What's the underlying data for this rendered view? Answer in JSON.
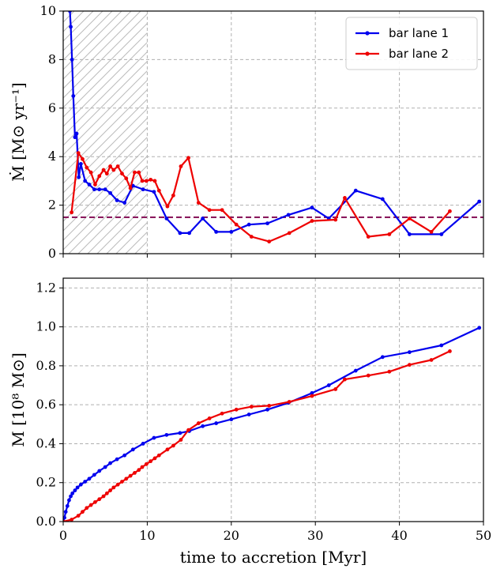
{
  "chart_data": [
    {
      "type": "line",
      "panel": "top",
      "xlabel": "",
      "ylabel": "Ṁ [M⊙ yr⁻¹]",
      "xlim": [
        0,
        50
      ],
      "ylim": [
        0,
        10
      ],
      "xticks": [
        0,
        10,
        20,
        30,
        40,
        50
      ],
      "yticks": [
        0,
        2,
        4,
        6,
        8,
        10
      ],
      "x_tick_labels_shown": false,
      "grid": true,
      "legend": "top-right",
      "hatched_region": [
        0,
        10
      ],
      "reference_line": {
        "y": 1.5,
        "color": "#8b1a5e",
        "style": "dashed"
      },
      "series": [
        {
          "name": "bar lane 1",
          "color": "#0000ee",
          "x": [
            0.8,
            0.9,
            1.05,
            1.2,
            1.4,
            1.6,
            1.85,
            2.1,
            2.6,
            3.1,
            3.7,
            4.3,
            5.0,
            5.6,
            6.4,
            7.3,
            8.3,
            9.5,
            10.8,
            12.3,
            13.9,
            15.0,
            16.6,
            18.2,
            20.0,
            22.1,
            24.3,
            26.8,
            29.6,
            31.6,
            34.8,
            38.0,
            41.2,
            45.0,
            49.5
          ],
          "y": [
            10.0,
            9.35,
            8.0,
            6.5,
            4.8,
            4.95,
            3.15,
            3.7,
            3.0,
            2.85,
            2.65,
            2.65,
            2.65,
            2.5,
            2.2,
            2.1,
            2.8,
            2.65,
            2.55,
            1.45,
            0.85,
            0.85,
            1.45,
            0.9,
            0.9,
            1.2,
            1.25,
            1.6,
            1.9,
            1.45,
            2.6,
            2.25,
            0.8,
            0.8,
            2.15
          ]
        },
        {
          "name": "bar lane 2",
          "color": "#ee0000",
          "x": [
            1.0,
            1.8,
            2.3,
            2.8,
            3.3,
            3.8,
            4.3,
            4.8,
            5.2,
            5.6,
            6.0,
            6.5,
            7.0,
            7.5,
            8.0,
            8.5,
            9.0,
            9.4,
            9.9,
            10.4,
            10.9,
            11.4,
            12.4,
            13.1,
            14.0,
            14.9,
            16.1,
            17.4,
            18.9,
            20.6,
            22.4,
            24.5,
            26.9,
            29.6,
            32.4,
            33.5,
            36.3,
            38.8,
            41.2,
            43.8,
            46.0
          ],
          "y": [
            1.7,
            4.15,
            3.9,
            3.55,
            3.35,
            2.85,
            3.2,
            3.45,
            3.3,
            3.6,
            3.45,
            3.6,
            3.3,
            3.1,
            2.7,
            3.35,
            3.35,
            3.0,
            3.0,
            3.05,
            3.0,
            2.6,
            1.95,
            2.4,
            3.6,
            3.95,
            2.1,
            1.8,
            1.8,
            1.2,
            0.7,
            0.5,
            0.85,
            1.35,
            1.4,
            2.3,
            0.7,
            0.8,
            1.45,
            0.9,
            1.75
          ]
        }
      ]
    },
    {
      "type": "line",
      "panel": "bottom",
      "xlabel": "time to accretion [Myr]",
      "ylabel": "M [10⁸ M⊙]",
      "xlim": [
        0,
        50
      ],
      "ylim": [
        0,
        1.25
      ],
      "xticks": [
        0,
        10,
        20,
        30,
        40,
        50
      ],
      "yticks": [
        0.0,
        0.2,
        0.4,
        0.6,
        0.8,
        1.0,
        1.2
      ],
      "x_tick_labels": [
        "0",
        "10",
        "20",
        "30",
        "40",
        "50"
      ],
      "y_tick_labels": [
        "0.0",
        "0.2",
        "0.4",
        "0.6",
        "0.8",
        "1.0",
        "1.2"
      ],
      "grid": true,
      "series": [
        {
          "name": "bar lane 1",
          "color": "#0000ee",
          "x": [
            0.0,
            0.15,
            0.3,
            0.5,
            0.7,
            0.9,
            1.1,
            1.4,
            1.7,
            2.1,
            2.6,
            3.1,
            3.7,
            4.3,
            5.0,
            5.6,
            6.4,
            7.3,
            8.3,
            9.5,
            10.8,
            12.3,
            13.9,
            15.0,
            16.6,
            18.2,
            20.0,
            22.1,
            24.3,
            26.8,
            29.6,
            31.6,
            34.8,
            38.0,
            41.2,
            45.0,
            49.5
          ],
          "y": [
            0.0,
            0.02,
            0.05,
            0.08,
            0.11,
            0.13,
            0.145,
            0.16,
            0.175,
            0.19,
            0.205,
            0.22,
            0.24,
            0.26,
            0.28,
            0.3,
            0.32,
            0.34,
            0.37,
            0.4,
            0.43,
            0.445,
            0.455,
            0.465,
            0.49,
            0.505,
            0.525,
            0.55,
            0.575,
            0.61,
            0.66,
            0.7,
            0.775,
            0.845,
            0.87,
            0.905,
            0.995
          ]
        },
        {
          "name": "bar lane 2",
          "color": "#ee0000",
          "x": [
            0.0,
            1.0,
            1.8,
            2.3,
            2.8,
            3.3,
            3.8,
            4.3,
            4.8,
            5.2,
            5.6,
            6.0,
            6.5,
            7.0,
            7.5,
            8.0,
            8.5,
            9.0,
            9.4,
            9.9,
            10.4,
            10.9,
            11.4,
            12.4,
            13.1,
            14.0,
            14.9,
            16.1,
            17.4,
            18.9,
            20.6,
            22.4,
            24.5,
            26.9,
            29.6,
            32.4,
            33.5,
            36.3,
            38.8,
            41.2,
            43.8,
            46.0
          ],
          "y": [
            0.0,
            0.01,
            0.03,
            0.05,
            0.07,
            0.085,
            0.1,
            0.115,
            0.13,
            0.145,
            0.16,
            0.175,
            0.19,
            0.205,
            0.22,
            0.235,
            0.25,
            0.265,
            0.28,
            0.295,
            0.31,
            0.325,
            0.34,
            0.37,
            0.39,
            0.42,
            0.47,
            0.505,
            0.53,
            0.555,
            0.575,
            0.59,
            0.595,
            0.615,
            0.645,
            0.68,
            0.73,
            0.75,
            0.77,
            0.805,
            0.83,
            0.875
          ]
        }
      ]
    }
  ]
}
